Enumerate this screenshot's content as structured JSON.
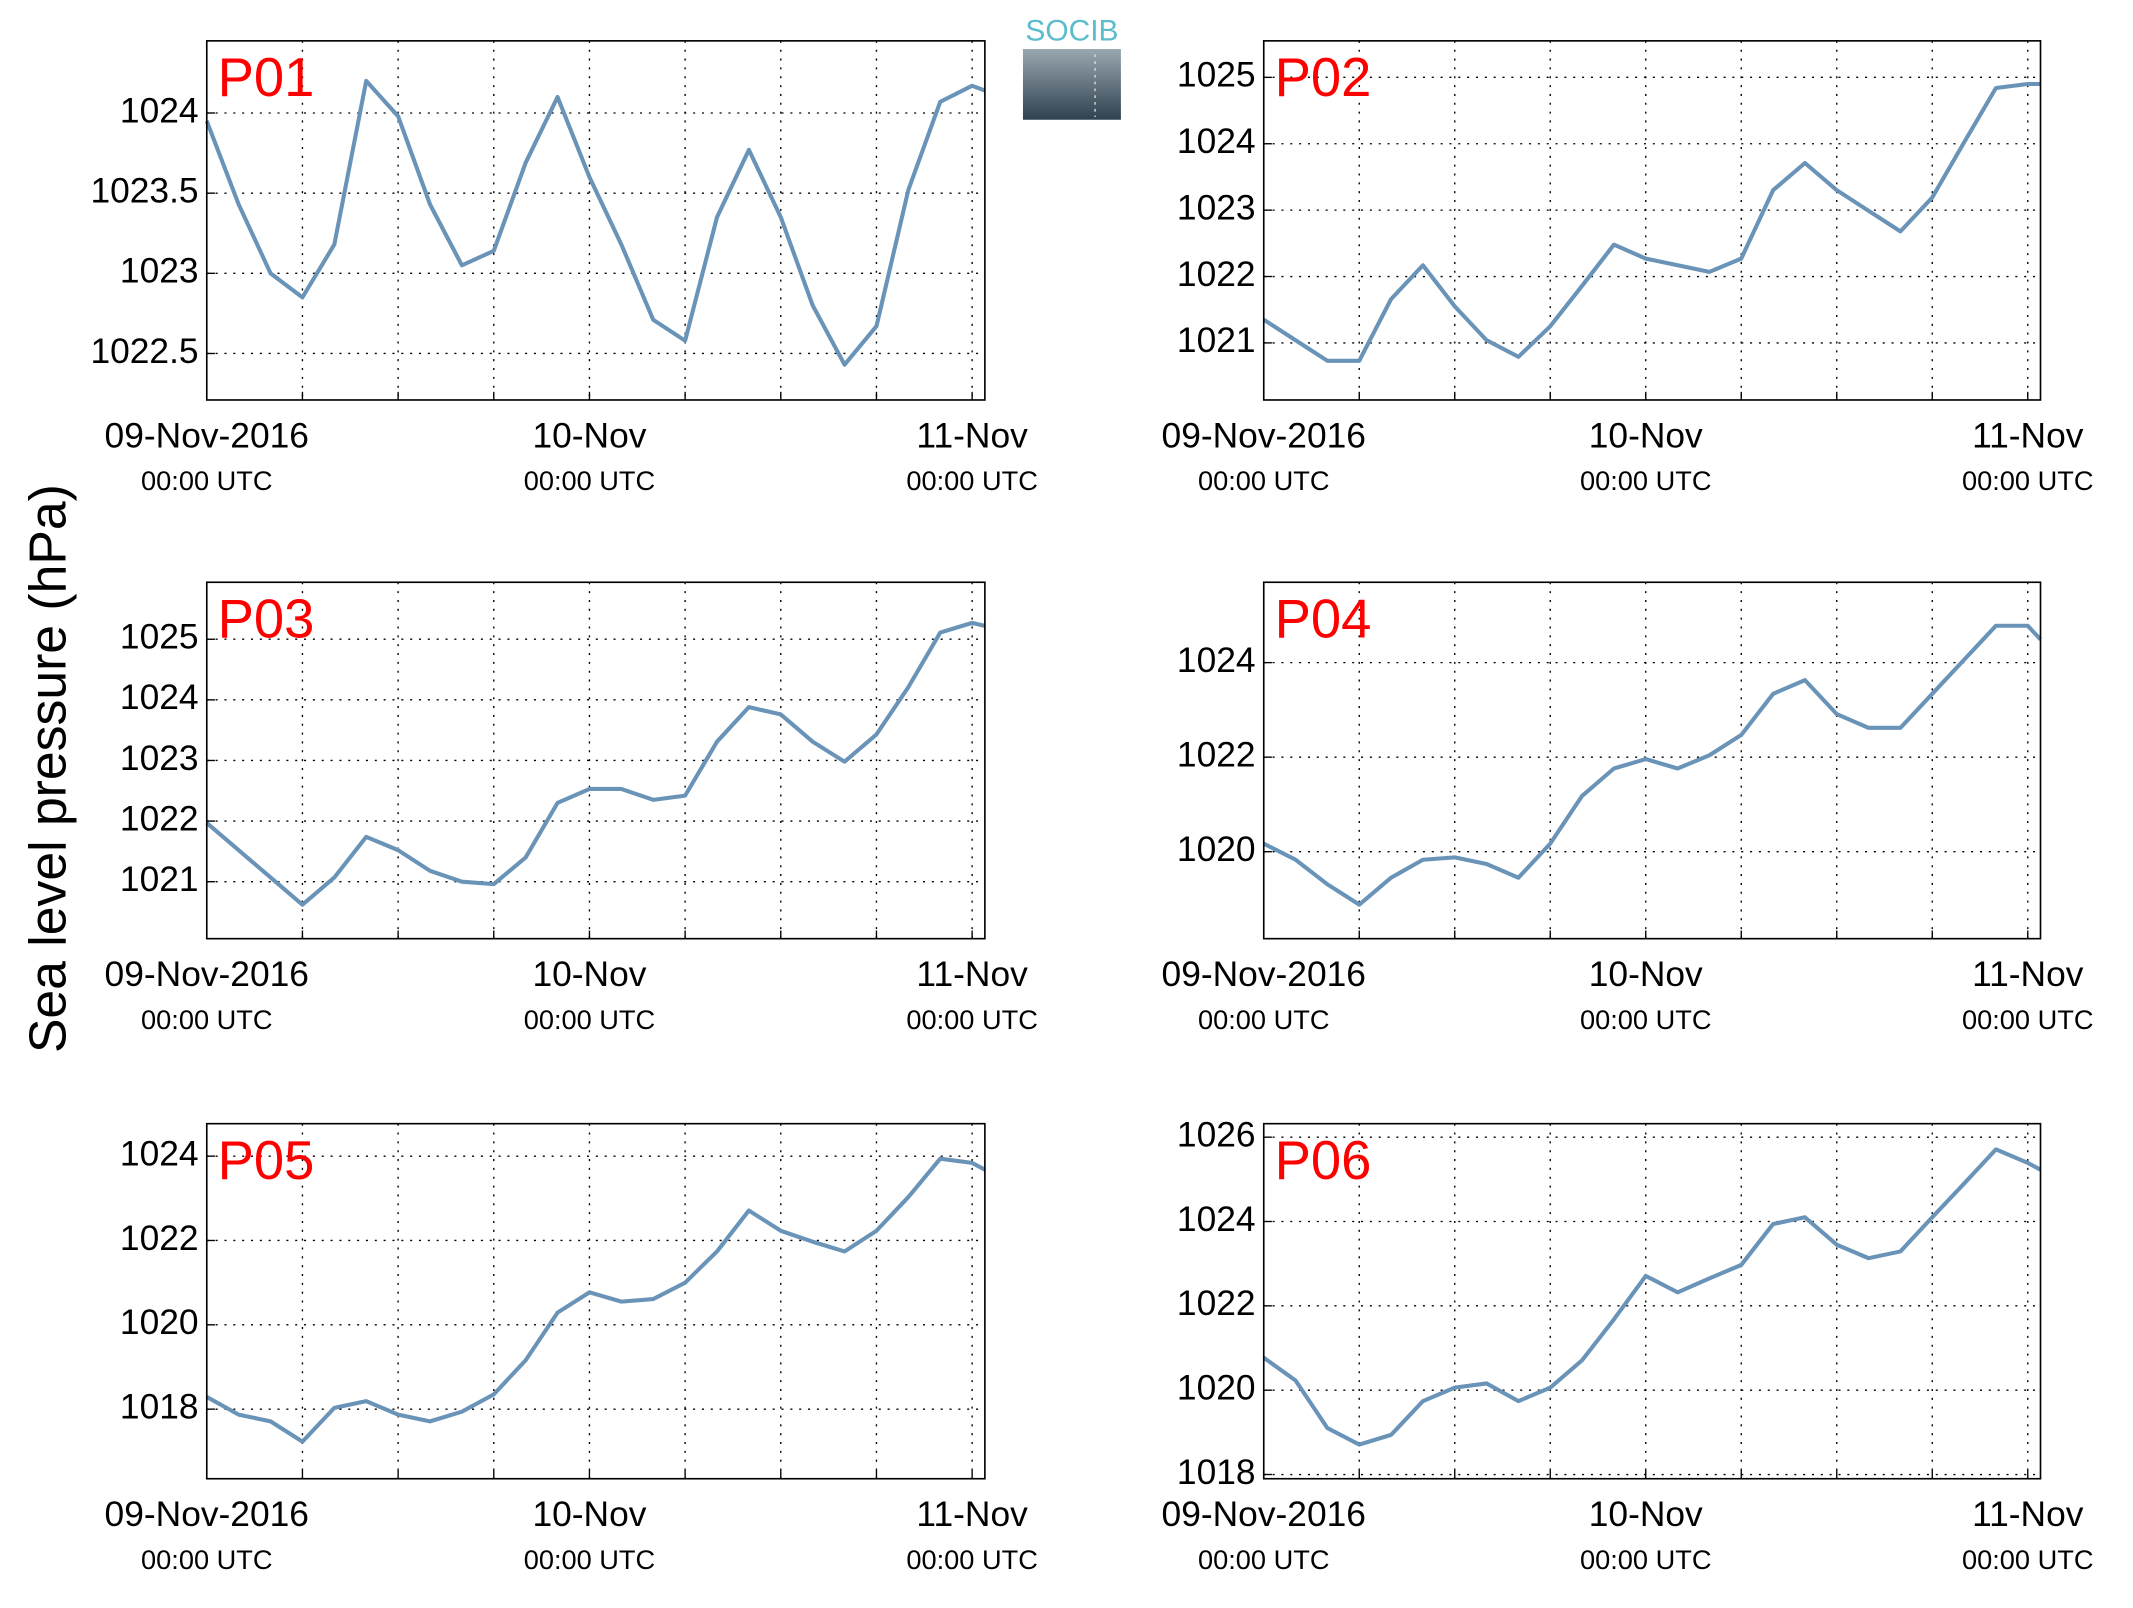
{
  "figure": {
    "ylabel": "Sea level pressure (hPa)",
    "logo": "SOCIB"
  },
  "chart_data": [
    {
      "type": "line",
      "title": "P01",
      "title_color": "#ff0000",
      "color": "#6a93b8",
      "grid": true,
      "x": [
        0,
        2,
        4,
        6,
        8,
        10,
        12,
        14,
        16,
        18,
        20,
        22,
        24,
        26,
        28,
        30,
        32,
        34,
        36,
        38,
        40,
        42,
        44,
        46,
        48,
        48.8
      ],
      "values": [
        1023.95,
        1023.43,
        1023.0,
        1022.85,
        1023.18,
        1024.2,
        1023.98,
        1023.43,
        1023.05,
        1023.14,
        1023.69,
        1024.1,
        1023.6,
        1023.18,
        1022.71,
        1022.58,
        1023.35,
        1023.77,
        1023.35,
        1022.8,
        1022.43,
        1022.67,
        1023.52,
        1024.07,
        1024.17,
        1024.14
      ],
      "xlim": [
        0,
        48.8
      ],
      "ylim": [
        1022.21,
        1024.45
      ],
      "yticks": [
        1022.5,
        1023,
        1023.5,
        1024
      ],
      "xticks": [
        {
          "value": 0,
          "label": "09-Nov-2016",
          "sublabel": "00:00 UTC"
        },
        {
          "value": 6
        },
        {
          "value": 12
        },
        {
          "value": 18
        },
        {
          "value": 24,
          "label": "10-Nov",
          "sublabel": "00:00 UTC"
        },
        {
          "value": 30
        },
        {
          "value": 36
        },
        {
          "value": 42
        },
        {
          "value": 48,
          "label": "11-Nov",
          "sublabel": "00:00 UTC"
        }
      ]
    },
    {
      "type": "line",
      "title": "P02",
      "title_color": "#ff0000",
      "color": "#6a93b8",
      "grid": true,
      "x": [
        0,
        2,
        4,
        6,
        8,
        10,
        12,
        14,
        16,
        18,
        20,
        22,
        24,
        26,
        28,
        30,
        32,
        34,
        36,
        38,
        40,
        42,
        44,
        46,
        48,
        48.8
      ],
      "values": [
        1021.35,
        1021.04,
        1020.73,
        1020.73,
        1021.66,
        1022.17,
        1021.55,
        1021.04,
        1020.79,
        1021.25,
        1021.86,
        1022.48,
        1022.27,
        1022.17,
        1022.07,
        1022.27,
        1023.3,
        1023.71,
        1023.3,
        1022.99,
        1022.68,
        1023.19,
        1024.02,
        1024.84,
        1024.9,
        1024.9
      ],
      "xlim": [
        0,
        48.8
      ],
      "ylim": [
        1020.14,
        1025.55
      ],
      "yticks": [
        1021,
        1022,
        1023,
        1024,
        1025
      ],
      "xticks": [
        {
          "value": 0,
          "label": "09-Nov-2016",
          "sublabel": "00:00 UTC"
        },
        {
          "value": 6
        },
        {
          "value": 12
        },
        {
          "value": 18
        },
        {
          "value": 24,
          "label": "10-Nov",
          "sublabel": "00:00 UTC"
        },
        {
          "value": 30
        },
        {
          "value": 36
        },
        {
          "value": 42
        },
        {
          "value": 48,
          "label": "11-Nov",
          "sublabel": "00:00 UTC"
        }
      ]
    },
    {
      "type": "line",
      "title": "P03",
      "title_color": "#ff0000",
      "color": "#6a93b8",
      "grid": true,
      "x": [
        0,
        2,
        4,
        6,
        8,
        10,
        12,
        14,
        16,
        18,
        20,
        22,
        24,
        26,
        28,
        30,
        32,
        34,
        36,
        38,
        40,
        42,
        44,
        46,
        48,
        48.8
      ],
      "values": [
        1021.97,
        1021.52,
        1021.07,
        1020.62,
        1021.07,
        1021.74,
        1021.52,
        1021.18,
        1021.0,
        1020.96,
        1021.4,
        1022.3,
        1022.53,
        1022.53,
        1022.35,
        1022.42,
        1023.31,
        1023.88,
        1023.76,
        1023.31,
        1022.98,
        1023.43,
        1024.21,
        1025.11,
        1025.27,
        1025.22
      ],
      "xlim": [
        0,
        48.8
      ],
      "ylim": [
        1020.06,
        1025.94
      ],
      "yticks": [
        1021,
        1022,
        1023,
        1024,
        1025
      ],
      "xticks": [
        {
          "value": 0,
          "label": "09-Nov-2016",
          "sublabel": "00:00 UTC"
        },
        {
          "value": 6
        },
        {
          "value": 12
        },
        {
          "value": 18
        },
        {
          "value": 24,
          "label": "10-Nov",
          "sublabel": "00:00 UTC"
        },
        {
          "value": 30
        },
        {
          "value": 36
        },
        {
          "value": 42
        },
        {
          "value": 48,
          "label": "11-Nov",
          "sublabel": "00:00 UTC"
        }
      ]
    },
    {
      "type": "line",
      "title": "P04",
      "title_color": "#ff0000",
      "color": "#6a93b8",
      "grid": true,
      "x": [
        0,
        2,
        4,
        6,
        8,
        10,
        12,
        14,
        16,
        18,
        20,
        22,
        24,
        26,
        28,
        30,
        32,
        34,
        36,
        38,
        40,
        42,
        44,
        46,
        48,
        48.8
      ],
      "values": [
        1020.17,
        1019.83,
        1019.31,
        1018.88,
        1019.45,
        1019.83,
        1019.88,
        1019.74,
        1019.45,
        1020.17,
        1021.18,
        1021.76,
        1021.96,
        1021.76,
        1022.04,
        1022.47,
        1023.34,
        1023.63,
        1022.91,
        1022.62,
        1022.62,
        1023.34,
        1024.06,
        1024.78,
        1024.78,
        1024.49
      ],
      "xlim": [
        0,
        48.8
      ],
      "ylim": [
        1018.16,
        1025.7
      ],
      "yticks": [
        1020,
        1022,
        1024
      ],
      "xticks": [
        {
          "value": 0,
          "label": "09-Nov-2016",
          "sublabel": "00:00 UTC"
        },
        {
          "value": 6
        },
        {
          "value": 12
        },
        {
          "value": 18
        },
        {
          "value": 24,
          "label": "10-Nov",
          "sublabel": "00:00 UTC"
        },
        {
          "value": 30
        },
        {
          "value": 36
        },
        {
          "value": 42
        },
        {
          "value": 48,
          "label": "11-Nov",
          "sublabel": "00:00 UTC"
        }
      ]
    },
    {
      "type": "line",
      "title": "P05",
      "title_color": "#ff0000",
      "color": "#6a93b8",
      "grid": true,
      "x": [
        0,
        2,
        4,
        6,
        8,
        10,
        12,
        14,
        16,
        18,
        20,
        22,
        24,
        26,
        28,
        30,
        32,
        34,
        36,
        38,
        40,
        42,
        44,
        46,
        48,
        48.8
      ],
      "values": [
        1018.29,
        1017.87,
        1017.71,
        1017.23,
        1018.03,
        1018.19,
        1017.87,
        1017.71,
        1017.94,
        1018.35,
        1019.16,
        1020.29,
        1020.77,
        1020.55,
        1020.61,
        1021.0,
        1021.74,
        1022.71,
        1022.23,
        1021.97,
        1021.74,
        1022.23,
        1023.03,
        1023.94,
        1023.84,
        1023.68
      ],
      "xlim": [
        0,
        48.8
      ],
      "ylim": [
        1016.35,
        1024.77
      ],
      "yticks": [
        1018,
        1020,
        1022,
        1024
      ],
      "xticks": [
        {
          "value": 0,
          "label": "09-Nov-2016",
          "sublabel": "00:00 UTC"
        },
        {
          "value": 6
        },
        {
          "value": 12
        },
        {
          "value": 18
        },
        {
          "value": 24,
          "label": "10-Nov",
          "sublabel": "00:00 UTC"
        },
        {
          "value": 30
        },
        {
          "value": 36
        },
        {
          "value": 42
        },
        {
          "value": 48,
          "label": "11-Nov",
          "sublabel": "00:00 UTC"
        }
      ]
    },
    {
      "type": "line",
      "title": "P06",
      "title_color": "#ff0000",
      "color": "#6a93b8",
      "grid": true,
      "x": [
        0,
        2,
        4,
        6,
        8,
        10,
        12,
        14,
        16,
        18,
        20,
        22,
        24,
        26,
        28,
        30,
        32,
        34,
        36,
        38,
        40,
        42,
        44,
        46,
        48,
        48.8
      ],
      "values": [
        1020.77,
        1020.23,
        1019.1,
        1018.71,
        1018.94,
        1019.74,
        1020.06,
        1020.16,
        1019.74,
        1020.06,
        1020.71,
        1021.68,
        1022.71,
        1022.32,
        1022.65,
        1022.97,
        1023.94,
        1024.1,
        1023.45,
        1023.13,
        1023.29,
        1024.1,
        1024.9,
        1025.71,
        1025.39,
        1025.23
      ],
      "xlim": [
        0,
        48.8
      ],
      "ylim": [
        1017.9,
        1026.32
      ],
      "yticks": [
        1018,
        1020,
        1022,
        1024,
        1026
      ],
      "xticks": [
        {
          "value": 0,
          "label": "09-Nov-2016",
          "sublabel": "00:00 UTC"
        },
        {
          "value": 6
        },
        {
          "value": 12
        },
        {
          "value": 18
        },
        {
          "value": 24,
          "label": "10-Nov",
          "sublabel": "00:00 UTC"
        },
        {
          "value": 30
        },
        {
          "value": 36
        },
        {
          "value": 42
        },
        {
          "value": 48,
          "label": "11-Nov",
          "sublabel": "00:00 UTC"
        }
      ]
    }
  ]
}
